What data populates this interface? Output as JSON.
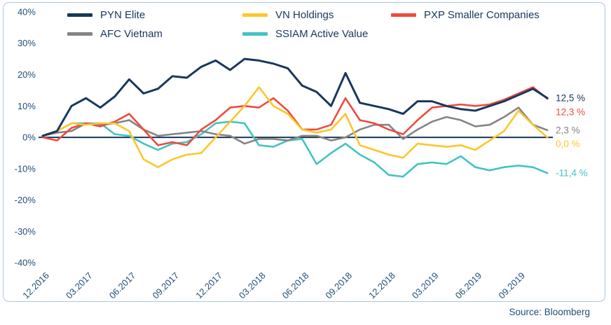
{
  "source": {
    "label": "Source: Bloomberg"
  },
  "colors": {
    "axis_text": "#1f4e79",
    "frame_border": "#a9c6e8",
    "zero_line": "#17375e",
    "background": "#ffffff"
  },
  "chart_data": {
    "type": "line",
    "title": "",
    "x_frequency": "monthly",
    "x_range": [
      "12.2016",
      "11.2019"
    ],
    "x_point_count": 36,
    "x_tick_labels": [
      "12.2016",
      "03.2017",
      "06.2017",
      "09.2017",
      "12.2017",
      "03.2018",
      "06.2018",
      "09.2018",
      "12.2018",
      "03.2019",
      "06.2019",
      "09.2019"
    ],
    "x_tick_indices": [
      0,
      3,
      6,
      9,
      12,
      15,
      18,
      21,
      24,
      27,
      30,
      33
    ],
    "y_ticks": [
      40,
      30,
      20,
      10,
      0,
      -10,
      -20,
      -30,
      -40
    ],
    "y_tick_labels": [
      "40%",
      "30%",
      "20%",
      "10%",
      "0%",
      "-10%",
      "-20%",
      "-30%",
      "-40%"
    ],
    "ylim": [
      -40,
      40
    ],
    "grid": false,
    "legend_position": "top",
    "legend_rows": [
      [
        "PYN Elite",
        "VN Holdings",
        "PXP Smaller Companies"
      ],
      [
        "AFC Vietnam",
        "SSIAM Active Value"
      ]
    ],
    "series": [
      {
        "name": "PYN Elite",
        "color": "#17375e",
        "line_width": 3,
        "end_label": "12,5 %",
        "values": [
          0.5,
          2,
          10,
          12.5,
          9.5,
          13,
          18.5,
          14,
          15.5,
          19.5,
          19,
          22.5,
          24.5,
          21.5,
          25,
          24.5,
          23.5,
          22,
          16.5,
          14.5,
          10,
          20.5,
          11,
          10,
          9,
          7.5,
          11.5,
          11.5,
          10,
          9,
          8.5,
          10,
          11.5,
          13.5,
          15.5,
          12.5
        ]
      },
      {
        "name": "VN Holdings",
        "color": "#fcc72b",
        "line_width": 2.6,
        "end_label": "0,0 %",
        "values": [
          0.5,
          2,
          4.5,
          4,
          4.5,
          4.5,
          2,
          -7,
          -9.5,
          -7,
          -5.5,
          -5,
          0,
          5,
          10,
          16,
          10,
          7.5,
          2.5,
          1.5,
          2.5,
          7.5,
          -2.5,
          -4,
          -5.5,
          -6.5,
          -2,
          -2.5,
          -3,
          -2.5,
          -4,
          -1,
          2,
          8.5,
          4,
          0
        ]
      },
      {
        "name": "PXP Smaller Companies",
        "color": "#ee4a3f",
        "line_width": 2.6,
        "end_label": "12,3 %",
        "values": [
          0,
          -1,
          3,
          4.5,
          3.5,
          5,
          7.5,
          2.5,
          -2.5,
          -1.5,
          -2.5,
          2.5,
          5.5,
          9.5,
          10,
          9.5,
          12.5,
          8.5,
          2.5,
          2.5,
          4,
          12.5,
          5.5,
          4.5,
          2.5,
          1,
          5.5,
          9.5,
          10,
          10.5,
          10,
          10.5,
          12,
          14,
          16,
          12.3
        ]
      },
      {
        "name": "AFC Vietnam",
        "color": "#848484",
        "line_width": 2.6,
        "end_label": "2,3 %",
        "values": [
          0.5,
          1.5,
          2,
          4.5,
          4,
          4.5,
          5.5,
          2.5,
          0.5,
          1,
          1.5,
          2,
          1,
          0.5,
          -2,
          -0.5,
          -0.5,
          -1,
          0.5,
          0.5,
          -1,
          0,
          2.5,
          4,
          4,
          -0.5,
          2.5,
          5,
          6.5,
          5.5,
          3.5,
          4,
          6.5,
          9.5,
          4,
          2.3
        ]
      },
      {
        "name": "SSIAM Active Value",
        "color": "#44c3c3",
        "line_width": 2.6,
        "end_label": "-11,4 %",
        "values": [
          0.5,
          2,
          4.5,
          4.5,
          4.5,
          1,
          0.5,
          -2,
          -4,
          -2,
          -1.5,
          1,
          4.5,
          5,
          4.5,
          -2.5,
          -3,
          -1,
          -0.5,
          -8.5,
          -5,
          -2,
          -5.5,
          -8,
          -12,
          -12.5,
          -8.5,
          -8,
          -8.5,
          -6,
          -9.5,
          -10.5,
          -9.5,
          -9,
          -9.5,
          -11.4
        ]
      }
    ]
  }
}
